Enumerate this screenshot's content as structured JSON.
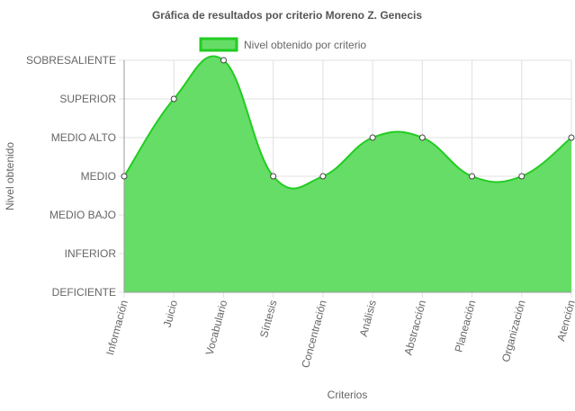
{
  "chart_data": {
    "type": "area",
    "title": "Gráfica de resultados por criterio Moreno Z. Genecis",
    "xlabel": "Criterios",
    "ylabel": "Nivel obtenido",
    "legend_position": "top",
    "grid": true,
    "y_levels": [
      "DEFICIENTE",
      "INFERIOR",
      "MEDIO BAJO",
      "MEDIO",
      "MEDIO ALTO",
      "SUPERIOR",
      "SOBRESALIENTE"
    ],
    "ylim": [
      0,
      6
    ],
    "categories": [
      "Información",
      "Juicio",
      "Vocabulario",
      "Síntesis",
      "Concentración",
      "Análisis",
      "Abstracción",
      "Planeación",
      "Organización",
      "Atención"
    ],
    "series": [
      {
        "name": "Nivel obtenido por criterio",
        "values": [
          3,
          5,
          6,
          3,
          3,
          4,
          4,
          3,
          3,
          4
        ],
        "value_labels": [
          "MEDIO",
          "SUPERIOR",
          "SOBRESALIENTE",
          "MEDIO",
          "MEDIO",
          "MEDIO ALTO",
          "MEDIO ALTO",
          "MEDIO",
          "MEDIO",
          "MEDIO ALTO"
        ],
        "fill_color": "#66dd66",
        "line_color": "#22cc22"
      }
    ],
    "colors": {
      "grid": "#e0e0e0",
      "axis": "#999999",
      "text": "#666666",
      "title": "#555555",
      "point_fill": "#ffffff",
      "point_stroke": "#444444"
    }
  }
}
